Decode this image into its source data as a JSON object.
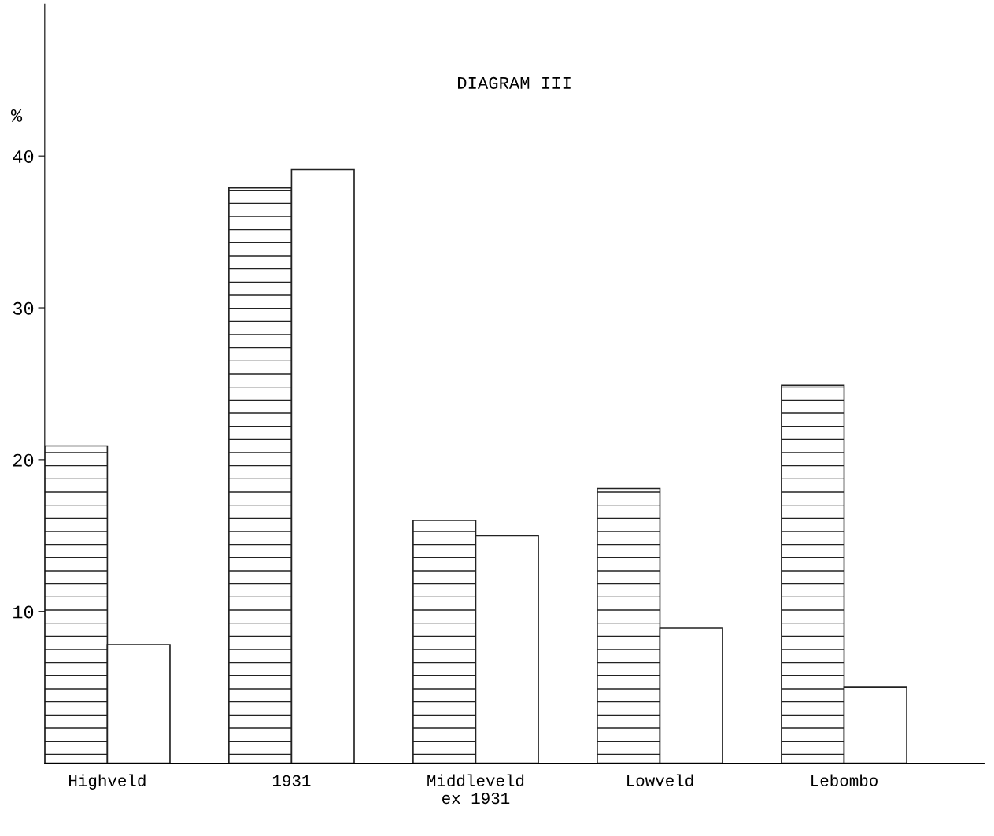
{
  "chart_data": {
    "type": "bar",
    "title": "DIAGRAM III",
    "ylabel": "%",
    "categories": [
      "Highveld",
      "1931",
      "Middleveld\nex 1931",
      "Lowveld",
      "Lebombo"
    ],
    "series": [
      {
        "color": "#222222",
        "values": [
          20.9,
          37.9,
          16.0,
          18.1,
          24.9
        ]
      },
      {
        "color": "#ffffff",
        "values": [
          7.8,
          39.1,
          15.0,
          8.9,
          5.0
        ]
      }
    ],
    "ylim": [
      0,
      50
    ],
    "yticks": [
      10,
      20,
      30,
      40
    ],
    "grid": false,
    "legend": false
  }
}
